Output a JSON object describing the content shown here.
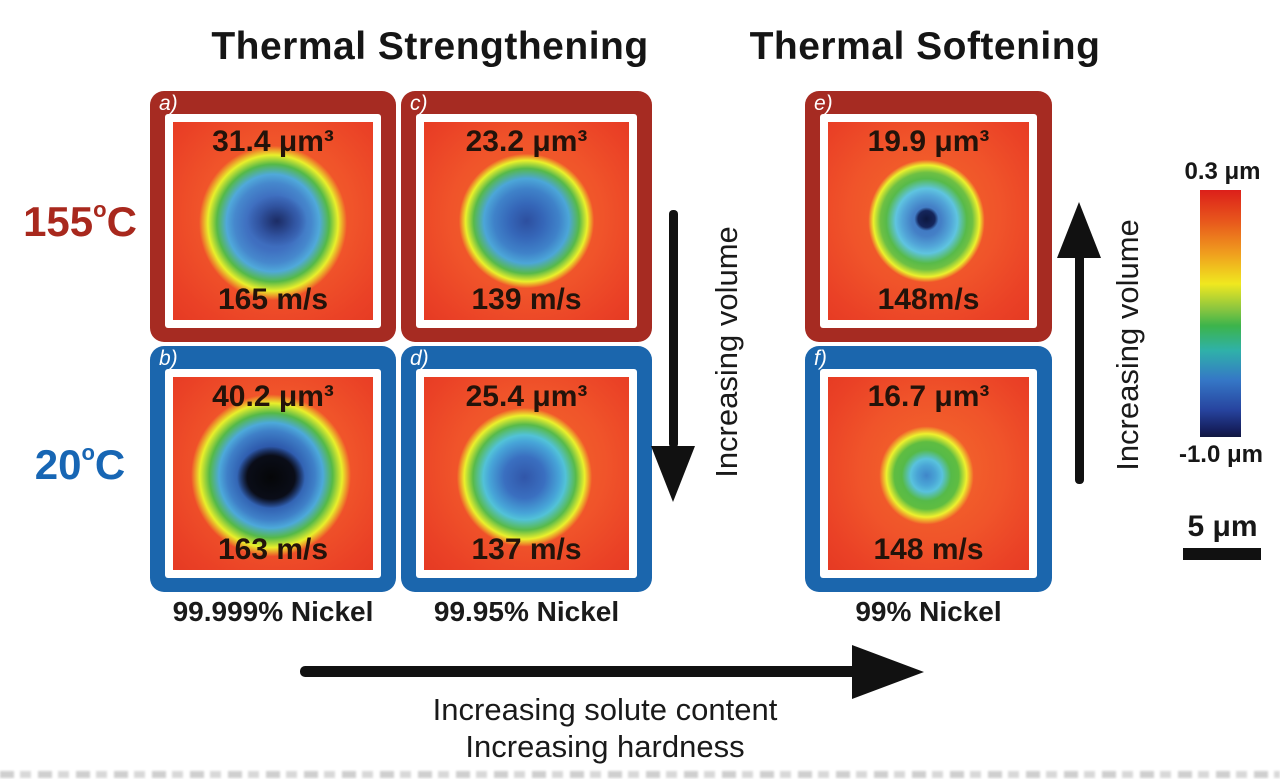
{
  "figure": {
    "title_left": "Thermal Strengthening",
    "title_right": "Thermal Softening"
  },
  "row_labels": [
    {
      "value": "155",
      "degree": "o",
      "unit": "C",
      "color": "#a8281d"
    },
    {
      "value": "20",
      "degree": "o",
      "unit": "C",
      "color": "#1766b4"
    }
  ],
  "panels": [
    {
      "id": "a",
      "label": "a)",
      "volume": "31.4 μm³",
      "speed": "165 m/s",
      "temperature_row": "155°C",
      "material": "99.999% Nickel",
      "border": "red"
    },
    {
      "id": "b",
      "label": "b)",
      "volume": "40.2 μm³",
      "speed": "163 m/s",
      "temperature_row": "20°C",
      "material": "99.999% Nickel",
      "border": "blue"
    },
    {
      "id": "c",
      "label": "c)",
      "volume": "23.2 μm³",
      "speed": "139 m/s",
      "temperature_row": "155°C",
      "material": "99.95% Nickel",
      "border": "red"
    },
    {
      "id": "d",
      "label": "d)",
      "volume": "25.4 μm³",
      "speed": "137 m/s",
      "temperature_row": "20°C",
      "material": "99.95% Nickel",
      "border": "blue"
    },
    {
      "id": "e",
      "label": "e)",
      "volume": "19.9 μm³",
      "speed": "148m/s",
      "temperature_row": "155°C",
      "material": "99% Nickel",
      "border": "red"
    },
    {
      "id": "f",
      "label": "f)",
      "volume": "16.7 μm³",
      "speed": "148 m/s",
      "temperature_row": "20°C",
      "material": "99% Nickel",
      "border": "blue"
    }
  ],
  "column_labels": [
    "99.999% Nickel",
    "99.95% Nickel",
    "99% Nickel"
  ],
  "annotations": {
    "middle_arrow_label": "Increasing volume",
    "right_arrow_label": "Increasing volume",
    "bottom_arrow_label_line1": "Increasing solute content",
    "bottom_arrow_label_line2": "Increasing hardness"
  },
  "colorbar": {
    "top_label": "0.3 μm",
    "bottom_label": "-1.0 μm",
    "top_color": "#dc1f1a",
    "bottom_color": "#101740"
  },
  "scale_bar": {
    "label": "5 μm"
  },
  "colors": {
    "hot_border": "#a62b22",
    "cold_border": "#1b66ad",
    "hot_text": "#a8281d",
    "cold_text": "#1766b4"
  }
}
